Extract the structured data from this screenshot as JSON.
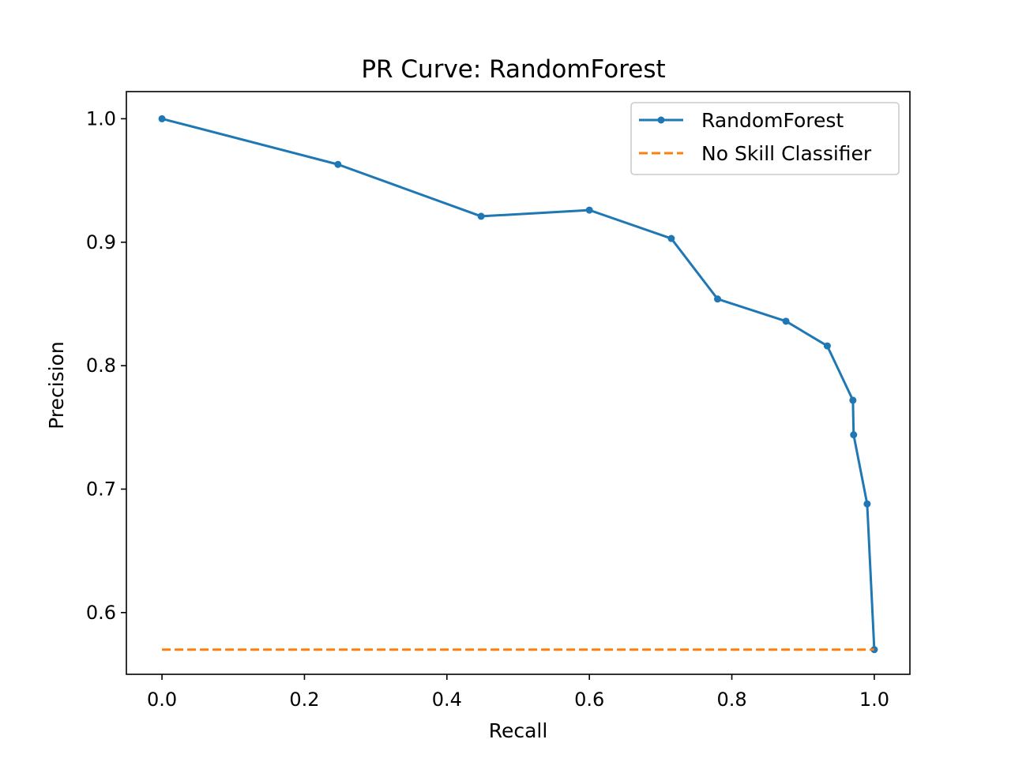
{
  "chart_data": {
    "type": "line",
    "title": "PR Curve: RandomForest",
    "xlabel": "Recall",
    "ylabel": "Precision",
    "xlim": [
      -0.05,
      1.05
    ],
    "ylim": [
      0.55,
      1.022
    ],
    "xticks": [
      0.0,
      0.2,
      0.4,
      0.6,
      0.8,
      1.0
    ],
    "xtick_labels": [
      "0.0",
      "0.2",
      "0.4",
      "0.6",
      "0.8",
      "1.0"
    ],
    "yticks": [
      0.6,
      0.7,
      0.8,
      0.9,
      1.0
    ],
    "ytick_labels": [
      "0.6",
      "0.7",
      "0.8",
      "0.9",
      "1.0"
    ],
    "grid": false,
    "legend_position": "top-right",
    "series": [
      {
        "name": "RandomForest",
        "color": "#1f77b4",
        "style": "solid",
        "marker": "dot",
        "x": [
          0.0,
          0.247,
          0.448,
          0.6,
          0.715,
          0.78,
          0.876,
          0.934,
          0.97,
          0.971,
          0.99,
          1.0
        ],
        "y": [
          1.0,
          0.963,
          0.921,
          0.926,
          0.903,
          0.854,
          0.836,
          0.816,
          0.772,
          0.744,
          0.688,
          0.57
        ]
      },
      {
        "name": "No Skill Classifier",
        "color": "#ff7f0e",
        "style": "dashed",
        "marker": "none",
        "x": [
          0.0,
          1.0
        ],
        "y": [
          0.57,
          0.57
        ]
      }
    ]
  }
}
